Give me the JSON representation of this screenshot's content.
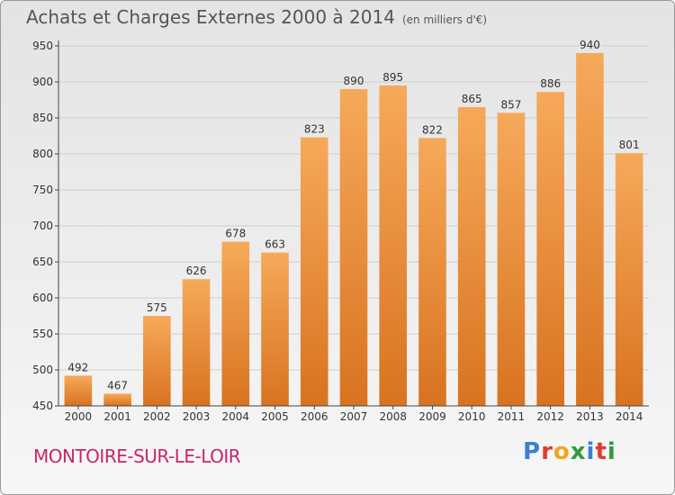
{
  "header": {
    "title": "Achats et Charges Externes 2000 à 2014",
    "subtitle": "(en milliers d'€)"
  },
  "footer": {
    "place": "MONTOIRE-SUR-LE-LOIR"
  },
  "logo": {
    "letters": [
      "P",
      "r",
      "o",
      "x",
      "i",
      "t",
      "i"
    ],
    "colors": [
      "#3a7fd5",
      "#e23b2e",
      "#f2a51a",
      "#2e9a3c",
      "#3a7fd5",
      "#e23b2e",
      "#2e9a3c"
    ]
  },
  "chart_data": {
    "type": "bar",
    "categories": [
      "2000",
      "2001",
      "2002",
      "2003",
      "2004",
      "2005",
      "2006",
      "2007",
      "2008",
      "2009",
      "2010",
      "2011",
      "2012",
      "2013",
      "2014"
    ],
    "values": [
      492,
      467,
      575,
      626,
      678,
      663,
      823,
      890,
      895,
      822,
      865,
      857,
      886,
      940,
      801
    ],
    "ylim": [
      450,
      950
    ],
    "yticks": [
      450,
      500,
      550,
      600,
      650,
      700,
      750,
      800,
      850,
      900,
      950
    ],
    "grid": true,
    "bar_color": "#f0923a"
  }
}
